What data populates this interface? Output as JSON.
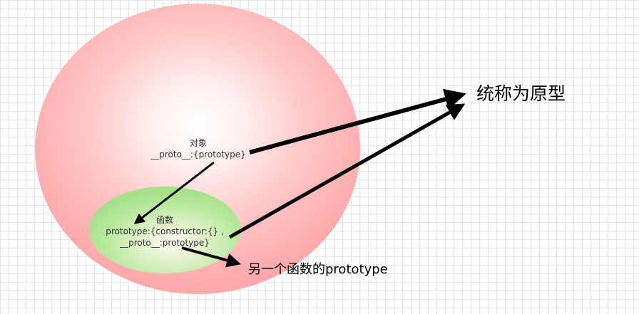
{
  "object_node": {
    "title": "对象",
    "proto": "__proto__:{prototype}"
  },
  "function_node": {
    "title": "函数",
    "prototype": "prototype:{constructor:{} ,",
    "proto": "__proto__:prototype}"
  },
  "labels": {
    "collective_name": "统称为原型",
    "another_prototype": "另一个函数的prototype"
  },
  "colors": {
    "outer_ellipse_edge": "#ffaaaa",
    "inner_ellipse_edge": "#a6e28a",
    "arrow": "#000000"
  }
}
